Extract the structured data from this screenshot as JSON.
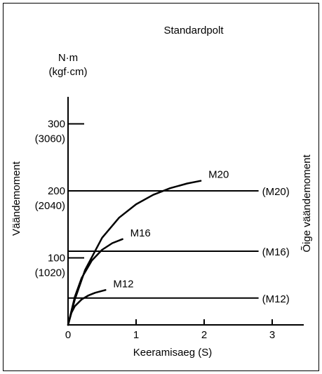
{
  "chart_data": {
    "type": "line",
    "title": "Standardpolt",
    "xlabel": "Keeramisaeg (S)",
    "ylabel": "Väändemoment",
    "y2label": "Õige väändemoment",
    "yunit": "N·m",
    "yunit2": "(kgf·cm)",
    "xlim": [
      0,
      3.5
    ],
    "ylim": [
      0,
      350
    ],
    "xticks": [
      "0",
      "1",
      "2",
      "3"
    ],
    "yticks": [
      {
        "value": 100,
        "label": "100",
        "label2": "(1020)"
      },
      {
        "value": 200,
        "label": "200",
        "label2": "(2040)"
      },
      {
        "value": 300,
        "label": "300",
        "label2": "(3060)"
      }
    ],
    "reference_lines": [
      {
        "name": "(M20)",
        "y": 200,
        "x_end": 2.8
      },
      {
        "name": "(M16)",
        "y": 110,
        "x_end": 2.8
      },
      {
        "name": "(M12)",
        "y": 40,
        "x_end": 2.8
      }
    ],
    "series": [
      {
        "name": "M20",
        "x": [
          0,
          0.1,
          0.25,
          0.5,
          0.75,
          1.0,
          1.25,
          1.5,
          1.75,
          1.95
        ],
        "y": [
          0,
          38,
          82,
          130,
          160,
          180,
          194,
          204,
          211,
          215
        ]
      },
      {
        "name": "M16",
        "x": [
          0,
          0.1,
          0.2,
          0.35,
          0.5,
          0.65,
          0.8
        ],
        "y": [
          0,
          42,
          70,
          96,
          112,
          122,
          128
        ]
      },
      {
        "name": "M12",
        "x": [
          0,
          0.05,
          0.1,
          0.2,
          0.3,
          0.4,
          0.55
        ],
        "y": [
          0,
          18,
          28,
          38,
          44,
          48,
          52
        ]
      }
    ],
    "grid": false,
    "legend": "none"
  }
}
